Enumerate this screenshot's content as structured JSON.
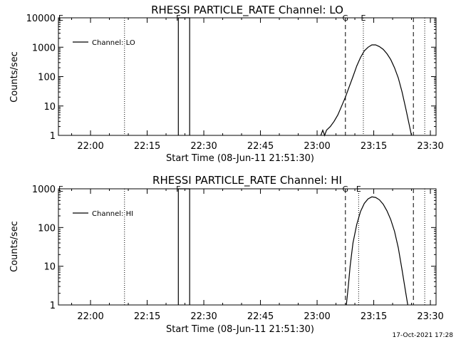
{
  "colors": {
    "background": "#ffffff",
    "foreground": "#000000"
  },
  "timestamp": "17-Oct-2021 17:28",
  "chart_data": [
    {
      "type": "line",
      "title": "RHESSI PARTICLE_RATE Channel: LO",
      "xlabel": "Start Time (08-Jun-11 21:51:30)",
      "ylabel": "Counts/sec",
      "y_scale": "log",
      "ylim": [
        1,
        10000
      ],
      "y_ticks": [
        1,
        10,
        100,
        1000,
        10000
      ],
      "y_tick_labels": [
        "1",
        "10",
        "100",
        "1000",
        "10000"
      ],
      "xlim": [
        "21:51:30",
        "23:31:30"
      ],
      "x_ticks": [
        "22:00",
        "22:15",
        "22:30",
        "22:45",
        "23:00",
        "23:15",
        "23:30"
      ],
      "legend": {
        "position": "top-left",
        "entries": [
          "Channel: LO"
        ]
      },
      "markers": [
        {
          "label": "F",
          "type": "solid",
          "x": [
            "22:23:15",
            "22:26:15"
          ]
        },
        {
          "label": "G",
          "type": "dashed",
          "x": [
            "23:07:30"
          ]
        },
        {
          "label": "E",
          "type": "dotted",
          "x": [
            "23:12:15"
          ]
        },
        {
          "label": "",
          "type": "dashed",
          "x": [
            "23:25:30"
          ]
        },
        {
          "label": "",
          "type": "dotted",
          "x": [
            "23:28:30"
          ]
        },
        {
          "label": "",
          "type": "dotted",
          "x": [
            "22:09:00"
          ]
        }
      ],
      "left_edge_label": "E",
      "series": [
        {
          "name": "Channel: LO",
          "points": [
            [
              "22:23:15",
              1
            ],
            [
              "22:23:15",
              10000
            ],
            [
              "22:26:15",
              10000
            ],
            [
              "22:26:15",
              1
            ],
            [
              "23:01:00",
              1
            ],
            [
              "23:01:30",
              1.5
            ],
            [
              "23:02:00",
              1
            ],
            [
              "23:02:30",
              1.5
            ],
            [
              "23:03:30",
              2
            ],
            [
              "23:04:30",
              3
            ],
            [
              "23:05:30",
              5
            ],
            [
              "23:06:30",
              10
            ],
            [
              "23:07:30",
              20
            ],
            [
              "23:08:30",
              45
            ],
            [
              "23:09:30",
              100
            ],
            [
              "23:10:30",
              230
            ],
            [
              "23:11:30",
              450
            ],
            [
              "23:12:30",
              750
            ],
            [
              "23:13:30",
              1000
            ],
            [
              "23:14:30",
              1200
            ],
            [
              "23:15:30",
              1200
            ],
            [
              "23:16:30",
              1050
            ],
            [
              "23:17:30",
              850
            ],
            [
              "23:18:30",
              600
            ],
            [
              "23:19:30",
              380
            ],
            [
              "23:20:30",
              200
            ],
            [
              "23:21:30",
              90
            ],
            [
              "23:22:30",
              30
            ],
            [
              "23:23:30",
              8
            ],
            [
              "23:24:30",
              2
            ],
            [
              "23:25:00",
              1
            ]
          ]
        }
      ]
    },
    {
      "type": "line",
      "title": "RHESSI PARTICLE_RATE Channel: HI",
      "xlabel": "Start Time (08-Jun-11 21:51:30)",
      "ylabel": "Counts/sec",
      "y_scale": "log",
      "ylim": [
        1,
        1000
      ],
      "y_ticks": [
        1,
        10,
        100,
        1000
      ],
      "y_tick_labels": [
        "1",
        "10",
        "100",
        "1000"
      ],
      "xlim": [
        "21:51:30",
        "23:31:30"
      ],
      "x_ticks": [
        "22:00",
        "22:15",
        "22:30",
        "22:45",
        "23:00",
        "23:15",
        "23:30"
      ],
      "legend": {
        "position": "top-left",
        "entries": [
          "Channel: HI"
        ]
      },
      "markers": [
        {
          "label": "F",
          "type": "solid",
          "x": [
            "22:23:15",
            "22:26:15"
          ]
        },
        {
          "label": "G",
          "type": "dashed",
          "x": [
            "23:07:30"
          ]
        },
        {
          "label": "E",
          "type": "dotted",
          "x": [
            "23:11:00"
          ]
        },
        {
          "label": "",
          "type": "dashed",
          "x": [
            "23:25:30"
          ]
        },
        {
          "label": "",
          "type": "dotted",
          "x": [
            "23:28:30"
          ]
        },
        {
          "label": "",
          "type": "dotted",
          "x": [
            "22:09:00"
          ]
        }
      ],
      "left_edge_label": "E",
      "series": [
        {
          "name": "Channel: HI",
          "points": [
            [
              "22:23:15",
              1
            ],
            [
              "22:23:15",
              1000
            ],
            [
              "22:26:15",
              1000
            ],
            [
              "22:26:15",
              1
            ],
            [
              "23:07:45",
              1
            ],
            [
              "23:08:15",
              3
            ],
            [
              "23:08:45",
              10
            ],
            [
              "23:09:30",
              40
            ],
            [
              "23:10:30",
              120
            ],
            [
              "23:11:30",
              260
            ],
            [
              "23:12:30",
              420
            ],
            [
              "23:13:30",
              550
            ],
            [
              "23:14:30",
              620
            ],
            [
              "23:15:30",
              600
            ],
            [
              "23:16:30",
              520
            ],
            [
              "23:17:30",
              400
            ],
            [
              "23:18:30",
              270
            ],
            [
              "23:19:30",
              160
            ],
            [
              "23:20:30",
              80
            ],
            [
              "23:21:30",
              30
            ],
            [
              "23:22:30",
              8
            ],
            [
              "23:23:30",
              2
            ],
            [
              "23:24:00",
              1
            ]
          ]
        }
      ]
    }
  ]
}
